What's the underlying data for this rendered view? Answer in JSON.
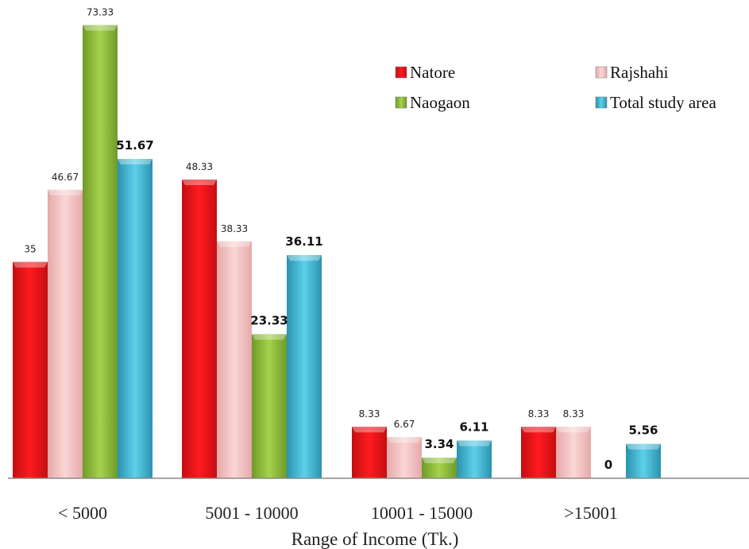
{
  "chart_data": {
    "type": "bar",
    "title": "",
    "xlabel": "Range of Income (Tk.)",
    "ylabel": "",
    "ylim": [
      0,
      80
    ],
    "grid": false,
    "legend": "top-right",
    "categories": [
      "< 5000",
      "5001  - 10000",
      "10001 - 15000",
      ">15001"
    ],
    "series": [
      {
        "name": "Natore",
        "color": "#e8151b",
        "values": [
          35,
          48.33,
          8.33,
          8.33
        ],
        "labels": [
          "35",
          "48.33",
          "8.33",
          "8.33"
        ]
      },
      {
        "name": "Rajshahi",
        "color": "#f2bcbc",
        "values": [
          46.67,
          38.33,
          6.67,
          8.33
        ],
        "labels": [
          "46.67",
          "38.33",
          "6.67",
          "8.33"
        ]
      },
      {
        "name": "Naogaon",
        "color": "#8cb83a",
        "values": [
          73.33,
          23.33,
          3.34,
          0
        ],
        "labels": [
          "73.33",
          "23.33",
          "3.34",
          "0"
        ]
      },
      {
        "name": "Total study area",
        "color": "#3fb3cf",
        "values": [
          51.67,
          36.11,
          6.11,
          5.56
        ],
        "labels": [
          "51.67",
          "36.11",
          "6.11",
          "5.56"
        ]
      }
    ]
  }
}
